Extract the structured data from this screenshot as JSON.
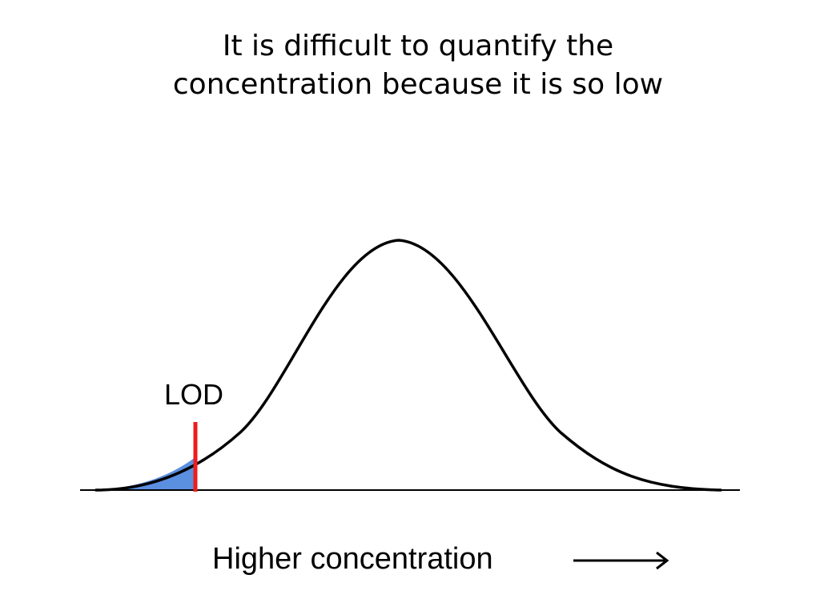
{
  "slide": {
    "title_line1": "It is difficult to quantify the",
    "title_line2": "concentration because it is so low",
    "lod_label": "LOD",
    "axis_label": "Higher concentration"
  },
  "diagram": {
    "shape": "normal-distribution-curve",
    "shaded_region": "left tail below LOD",
    "colors": {
      "curve": "#000000",
      "shaded_tail": "#5b8fe0",
      "lod_line": "#ee1c1c",
      "baseline": "#000000",
      "arrow": "#000000"
    },
    "arrow_icon": "right-arrow-icon"
  }
}
